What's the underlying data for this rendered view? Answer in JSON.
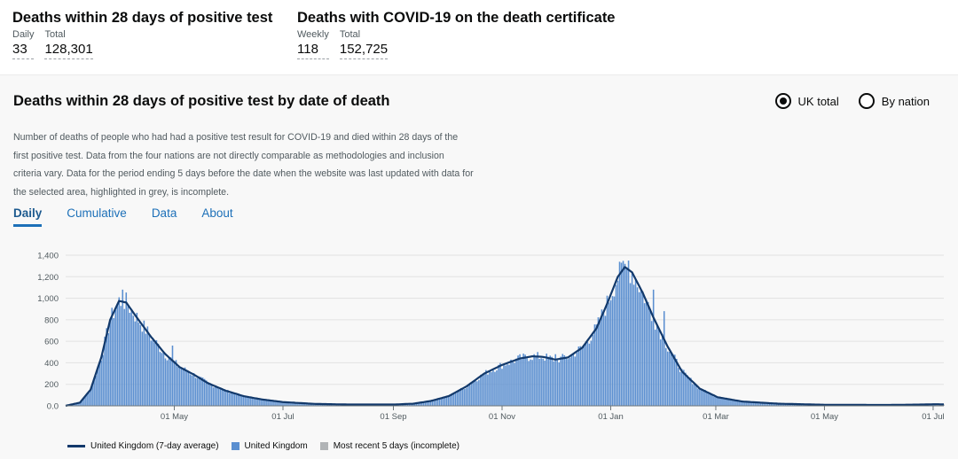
{
  "metrics": {
    "left": {
      "title": "Deaths within 28 days of positive test",
      "daily_label": "Daily",
      "daily_value": "33",
      "total_label": "Total",
      "total_value": "128,301"
    },
    "right": {
      "title": "Deaths with COVID-19 on the death certificate",
      "weekly_label": "Weekly",
      "weekly_value": "118",
      "total_label": "Total",
      "total_value": "152,725"
    }
  },
  "card": {
    "title": "Deaths within 28 days of positive test by date of death",
    "radio_uk": "UK total",
    "radio_nation": "By nation",
    "description": "Number of deaths of people who had had a positive test result for COVID-19 and died within 28 days of the first positive test. Data from the four nations are not directly comparable as methodologies and inclusion criteria vary. Data for the period ending 5 days before the date when the website was last updated with data for the selected area, highlighted in grey, is incomplete.",
    "tabs": [
      "Daily",
      "Cumulative",
      "Data",
      "About"
    ]
  },
  "legend": {
    "avg": "United Kingdom (7-day average)",
    "daily": "United Kingdom",
    "recent": "Most recent 5 days (incomplete)"
  },
  "colors": {
    "bar": "#5b8fd0",
    "line": "#12396b",
    "incomplete": "#b1b4b6",
    "link": "#1d70b8"
  },
  "chart_data": {
    "type": "bar",
    "title": "Deaths within 28 days of positive test by date of death",
    "xlabel": "",
    "ylabel": "",
    "ylim": [
      0,
      1400
    ],
    "yticks": [
      0,
      200,
      400,
      600,
      800,
      1000,
      1200,
      1400
    ],
    "ytick_labels": [
      "0.0",
      "200",
      "400",
      "600",
      "800",
      "1,000",
      "1,200",
      "1,400"
    ],
    "x_day_range": [
      0,
      493
    ],
    "xticks": [
      {
        "label": "01 May",
        "day": 61
      },
      {
        "label": "01 Jul",
        "day": 122
      },
      {
        "label": "01 Sep",
        "day": 184
      },
      {
        "label": "01 Nov",
        "day": 245
      },
      {
        "label": "01 Jan",
        "day": 306
      },
      {
        "label": "01 Mar",
        "day": 365
      },
      {
        "label": "01 May",
        "day": 426
      },
      {
        "label": "01 Jul",
        "day": 487
      }
    ],
    "series_note": "day index 0 = 01 Mar 2020; average curve sampled at key points, daily bars follow it with noise",
    "average_points": [
      [
        0,
        0
      ],
      [
        8,
        30
      ],
      [
        14,
        150
      ],
      [
        20,
        450
      ],
      [
        25,
        800
      ],
      [
        30,
        975
      ],
      [
        34,
        960
      ],
      [
        40,
        820
      ],
      [
        48,
        640
      ],
      [
        56,
        480
      ],
      [
        64,
        360
      ],
      [
        72,
        290
      ],
      [
        80,
        210
      ],
      [
        90,
        140
      ],
      [
        100,
        90
      ],
      [
        110,
        60
      ],
      [
        122,
        35
      ],
      [
        140,
        18
      ],
      [
        160,
        12
      ],
      [
        184,
        12
      ],
      [
        195,
        20
      ],
      [
        205,
        45
      ],
      [
        215,
        90
      ],
      [
        225,
        180
      ],
      [
        235,
        300
      ],
      [
        245,
        380
      ],
      [
        255,
        440
      ],
      [
        262,
        460
      ],
      [
        268,
        455
      ],
      [
        275,
        430
      ],
      [
        282,
        450
      ],
      [
        290,
        540
      ],
      [
        298,
        720
      ],
      [
        304,
        950
      ],
      [
        310,
        1200
      ],
      [
        314,
        1290
      ],
      [
        318,
        1240
      ],
      [
        324,
        1050
      ],
      [
        330,
        820
      ],
      [
        338,
        550
      ],
      [
        346,
        320
      ],
      [
        356,
        160
      ],
      [
        366,
        80
      ],
      [
        380,
        40
      ],
      [
        400,
        20
      ],
      [
        426,
        10
      ],
      [
        460,
        8
      ],
      [
        480,
        12
      ],
      [
        488,
        15
      ],
      [
        493,
        14
      ]
    ],
    "spikes": [
      [
        32,
        1080
      ],
      [
        60,
        560
      ],
      [
        275,
        480
      ],
      [
        280,
        470
      ],
      [
        312,
        1330
      ],
      [
        316,
        1350
      ],
      [
        330,
        1080
      ],
      [
        336,
        880
      ]
    ],
    "incomplete_last_days": 5
  }
}
